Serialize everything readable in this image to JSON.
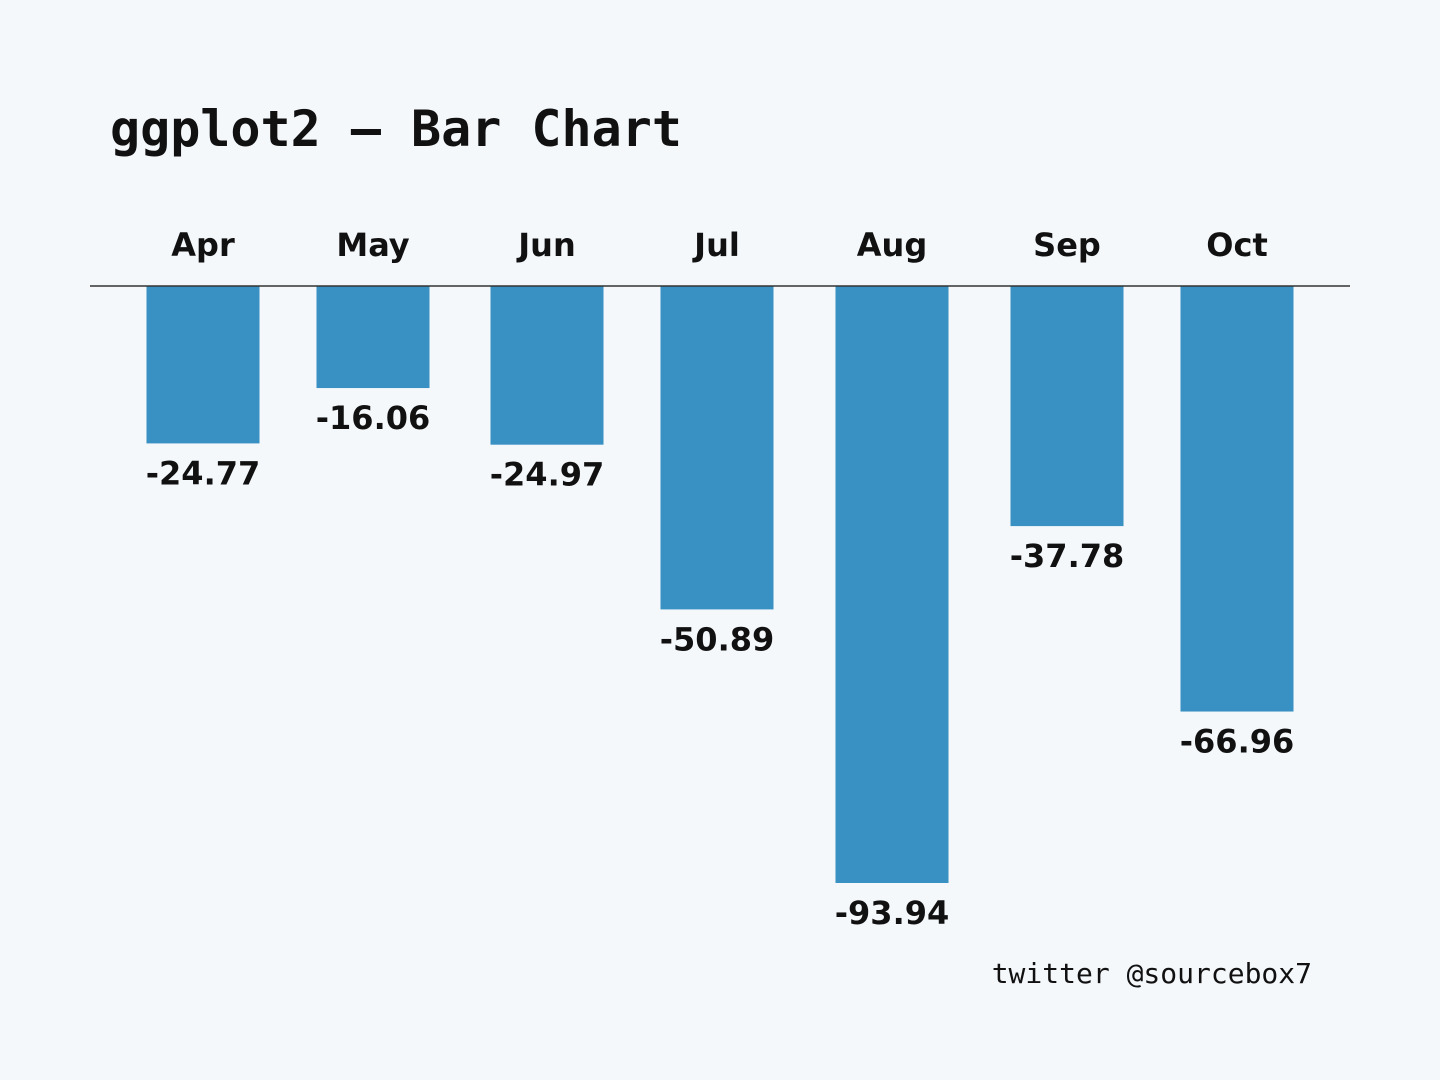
{
  "chart_data": {
    "type": "bar",
    "title": "ggplot2 – Bar Chart",
    "xlabel": "",
    "ylabel": "",
    "categories": [
      "Apr",
      "May",
      "Jun",
      "Jul",
      "Aug",
      "Sep",
      "Oct"
    ],
    "values": [
      -24.77,
      -16.06,
      -24.97,
      -50.89,
      -93.94,
      -37.78,
      -66.96
    ],
    "value_labels": [
      "-24.77",
      "-16.06",
      "-24.97",
      "-50.89",
      "-93.94",
      "-37.78",
      "-66.96"
    ],
    "ylim": [
      -93.94,
      0
    ],
    "grid": false,
    "legend": "none",
    "x_axis_position": "top",
    "bar_color": "#3891c2"
  },
  "caption": "twitter @sourcebox7",
  "colors": {
    "background": "#f4f8fb",
    "text": "#111111",
    "axis_line": "#333333"
  }
}
